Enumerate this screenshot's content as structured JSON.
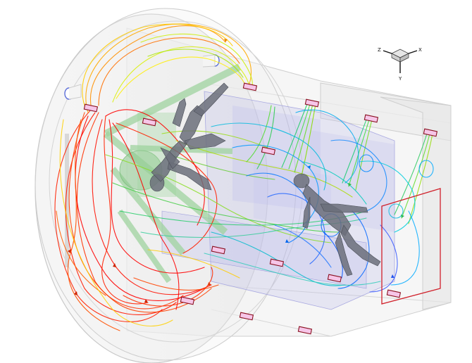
{
  "axes_triad": {
    "x_label": "X",
    "y_label": "Y",
    "z_label": "Z"
  },
  "colors": {
    "background": "#ffffff",
    "housing": "#d9d9d9",
    "room": "#b9b9ea",
    "manikin": "#6b6f7a",
    "frame": "#9fd39f",
    "window_frame": "#d0202a",
    "vent": "#8a1020",
    "streamline_scale": [
      "#ff0000",
      "#ff8000",
      "#ffff00",
      "#00dd00",
      "#00cccc",
      "#0080ff",
      "#3050ff"
    ]
  }
}
